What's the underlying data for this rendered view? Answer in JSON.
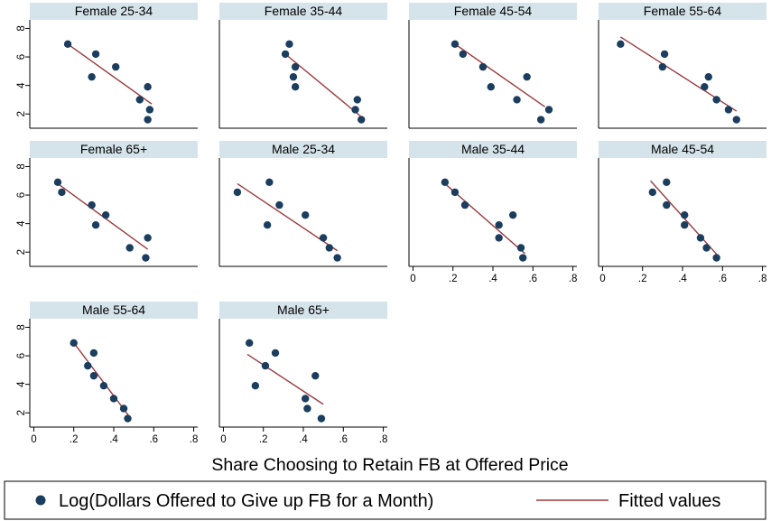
{
  "chart_data": {
    "type": "scatter",
    "xlabel": "Share Choosing to Retain FB at Offered Price",
    "ylabel": "",
    "xlim": [
      -0.02,
      0.82
    ],
    "ylim": [
      1.0,
      8.6
    ],
    "x_ticks": [
      "0",
      ".2",
      ".4",
      ".6",
      ".8"
    ],
    "x_tick_values": [
      0,
      0.2,
      0.4,
      0.6,
      0.8
    ],
    "y_ticks": [
      "2",
      "4",
      "6",
      "8"
    ],
    "y_tick_values": [
      2,
      4,
      6,
      8
    ],
    "grid": false,
    "legend_position": "bottom",
    "legend": {
      "points_label": "Log(Dollars Offered to Give up FB for a Month)",
      "line_label": "Fitted values"
    },
    "colors": {
      "points": "#1b3d5e",
      "fit": "#9b3a3f",
      "strip": "#d5e3ea",
      "frame": "#000000"
    },
    "panels": [
      {
        "title": "Female 25-34",
        "x": [
          0.17,
          0.31,
          0.29,
          0.41,
          0.53,
          0.57,
          0.58,
          0.57
        ],
        "y": [
          6.9,
          6.2,
          4.6,
          5.3,
          3.0,
          3.9,
          2.3,
          1.6
        ],
        "fit": {
          "x": [
            0.17,
            0.59
          ],
          "y": [
            6.9,
            2.7
          ]
        }
      },
      {
        "title": "Female 35-44",
        "x": [
          0.33,
          0.31,
          0.36,
          0.35,
          0.36,
          0.67,
          0.66,
          0.69
        ],
        "y": [
          6.9,
          6.2,
          5.3,
          4.6,
          3.9,
          3.0,
          2.3,
          1.6
        ],
        "fit": {
          "x": [
            0.31,
            0.69
          ],
          "y": [
            6.2,
            1.8
          ]
        }
      },
      {
        "title": "Female 45-54",
        "x": [
          0.21,
          0.25,
          0.35,
          0.39,
          0.57,
          0.52,
          0.68,
          0.64
        ],
        "y": [
          6.9,
          6.2,
          5.3,
          3.9,
          4.6,
          3.0,
          2.3,
          1.6
        ],
        "fit": {
          "x": [
            0.2,
            0.66
          ],
          "y": [
            7.0,
            2.5
          ]
        }
      },
      {
        "title": "Female 55-64",
        "x": [
          0.09,
          0.31,
          0.3,
          0.53,
          0.51,
          0.57,
          0.63,
          0.67
        ],
        "y": [
          6.9,
          6.2,
          5.3,
          4.6,
          3.9,
          3.0,
          2.3,
          1.6
        ],
        "fit": {
          "x": [
            0.09,
            0.67
          ],
          "y": [
            7.4,
            2.2
          ]
        }
      },
      {
        "title": "Female 65+",
        "x": [
          0.12,
          0.14,
          0.29,
          0.36,
          0.31,
          0.48,
          0.57,
          0.56
        ],
        "y": [
          6.9,
          6.2,
          5.3,
          4.6,
          3.9,
          2.3,
          3.0,
          1.6
        ],
        "fit": {
          "x": [
            0.12,
            0.57
          ],
          "y": [
            6.8,
            2.2
          ]
        }
      },
      {
        "title": "Male 25-34",
        "x": [
          0.07,
          0.23,
          0.28,
          0.22,
          0.41,
          0.5,
          0.53,
          0.57
        ],
        "y": [
          6.2,
          6.9,
          5.3,
          3.9,
          4.6,
          3.0,
          2.3,
          1.6
        ],
        "fit": {
          "x": [
            0.07,
            0.57
          ],
          "y": [
            6.8,
            2.1
          ]
        }
      },
      {
        "title": "Male 35-44",
        "x": [
          0.16,
          0.21,
          0.26,
          0.43,
          0.5,
          0.43,
          0.54,
          0.55
        ],
        "y": [
          6.9,
          6.2,
          5.3,
          3.9,
          4.6,
          3.0,
          2.3,
          1.6
        ],
        "fit": {
          "x": [
            0.16,
            0.56
          ],
          "y": [
            6.8,
            1.9
          ]
        }
      },
      {
        "title": "Male 45-54",
        "x": [
          0.32,
          0.25,
          0.32,
          0.41,
          0.41,
          0.49,
          0.52,
          0.57
        ],
        "y": [
          6.9,
          6.2,
          5.3,
          4.6,
          3.9,
          3.0,
          2.3,
          1.6
        ],
        "fit": {
          "x": [
            0.24,
            0.58
          ],
          "y": [
            7.0,
            1.7
          ]
        }
      },
      {
        "title": "Male 55-64",
        "x": [
          0.2,
          0.3,
          0.27,
          0.3,
          0.35,
          0.4,
          0.45,
          0.47
        ],
        "y": [
          6.9,
          6.2,
          5.3,
          4.6,
          3.9,
          3.0,
          2.3,
          1.6
        ],
        "fit": {
          "x": [
            0.19,
            0.48
          ],
          "y": [
            7.1,
            1.7
          ]
        }
      },
      {
        "title": "Male 65+",
        "x": [
          0.13,
          0.26,
          0.21,
          0.16,
          0.46,
          0.41,
          0.42,
          0.49
        ],
        "y": [
          6.9,
          6.2,
          5.3,
          3.9,
          4.6,
          3.0,
          2.3,
          1.6
        ],
        "fit": {
          "x": [
            0.12,
            0.5
          ],
          "y": [
            6.1,
            2.6
          ]
        }
      }
    ]
  }
}
